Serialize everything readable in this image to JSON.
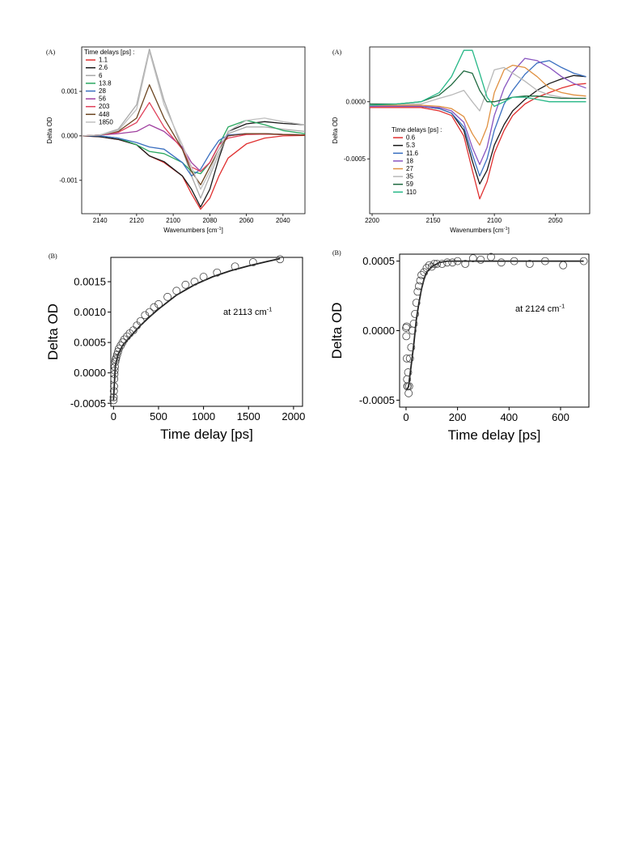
{
  "chart_data": [
    {
      "panel": "(A)",
      "type": "line",
      "xlabel": "Wavenumbers [cm",
      "xlabel_sup": "-1",
      "xlabel_end": "]",
      "ylabel": "Delta OD",
      "xlim": [
        2150,
        2028
      ],
      "ylim": [
        -0.00175,
        0.002
      ],
      "xticks": [
        2140,
        2120,
        2100,
        2080,
        2060,
        2040
      ],
      "yticks": [
        {
          "v": 0.001,
          "label": "0.001"
        },
        {
          "v": 0,
          "label": "0.000"
        },
        {
          "v": -0.001,
          "label": "-0.001"
        }
      ],
      "legend_title": "Time delays [ps] :",
      "legend_position": "top-left",
      "x": [
        2150,
        2140,
        2130,
        2120,
        2113,
        2105,
        2095,
        2090,
        2085,
        2080,
        2075,
        2070,
        2060,
        2050,
        2040,
        2028
      ],
      "series": [
        {
          "name": "1.1",
          "color": "#e03030",
          "values": [
            0,
            -2e-05,
            -8e-05,
            -0.0002,
            -0.00045,
            -0.0006,
            -0.0009,
            -0.0013,
            -0.00165,
            -0.0014,
            -0.0009,
            -0.0005,
            -0.00018,
            -5e-05,
            0,
            1e-05
          ]
        },
        {
          "name": " 2.6",
          "color": "#1a1a1a",
          "values": [
            0,
            -2e-05,
            -8e-05,
            -0.0002,
            -0.00045,
            -0.00058,
            -0.0009,
            -0.0012,
            -0.0016,
            -0.0012,
            -0.0005,
            0.0001,
            0.00027,
            0.00032,
            0.00028,
            0.00025
          ]
        },
        {
          "name": "6",
          "color": "#a8a8a8",
          "values": [
            0,
            2e-05,
            0.00015,
            0.0007,
            0.00195,
            0.0008,
            -0.0003,
            -0.0009,
            -0.0014,
            -0.0009,
            -0.0004,
            5e-05,
            0.0002,
            0.0002,
            0.00015,
            0.0001
          ]
        },
        {
          "name": "13.8",
          "color": "#2aa860",
          "values": [
            0,
            0.0,
            -5e-05,
            -0.0002,
            -0.00035,
            -0.0004,
            -0.0006,
            -0.0008,
            -0.00085,
            -0.0006,
            -0.0002,
            0.0002,
            0.00035,
            0.00025,
            0.00012,
            5e-05
          ]
        },
        {
          "name": "28",
          "color": "#3a6fc0",
          "values": [
            0,
            0.0,
            -5e-05,
            -0.00015,
            -0.00025,
            -0.0003,
            -0.0006,
            -0.0009,
            -0.00075,
            -0.0004,
            -0.0001,
            2e-05,
            5e-05,
            5e-05,
            3e-05,
            2e-05
          ]
        },
        {
          "name": "56",
          "color": "#a040a0",
          "values": [
            0,
            2e-05,
            5e-05,
            0.0001,
            0.00025,
            0.0001,
            -0.00025,
            -0.0006,
            -0.0008,
            -0.0006,
            -0.0002,
            0.0,
            5e-05,
            5e-05,
            3e-05,
            2e-05
          ]
        },
        {
          "name": "203",
          "color": "#e0405a",
          "values": [
            0,
            2e-05,
            8e-05,
            0.0003,
            0.00075,
            0.0002,
            -0.0003,
            -0.0007,
            -0.0008,
            -0.0006,
            -0.0002,
            -5e-05,
            3e-05,
            4e-05,
            3e-05,
            2e-05
          ]
        },
        {
          "name": "448",
          "color": "#6b4420",
          "values": [
            0,
            2e-05,
            0.0001,
            0.0004,
            0.00115,
            0.0004,
            -0.0003,
            -0.0008,
            -0.0011,
            -0.0007,
            -0.0003,
            0.0,
            5e-05,
            5e-05,
            3e-05,
            2e-05
          ]
        },
        {
          "name": "1850",
          "color": "#c0c0c0",
          "values": [
            0,
            2e-05,
            0.00012,
            0.0006,
            0.0019,
            0.0007,
            -0.0002,
            -0.0007,
            -0.0012,
            -0.0008,
            -0.0003,
            0.0001,
            0.00035,
            0.0004,
            0.00032,
            0.00025
          ]
        }
      ]
    },
    {
      "panel": "(A)",
      "type": "line",
      "xlabel": "Wavenumbers [cm",
      "xlabel_sup": "-1",
      "xlabel_end": "]",
      "ylabel": "Delta OD",
      "xlim": [
        2202,
        2022
      ],
      "ylim": [
        -0.00098,
        0.00048
      ],
      "xticks": [
        2200,
        2150,
        2100,
        2050
      ],
      "yticks": [
        {
          "v": 0,
          "label": "0.0000"
        },
        {
          "v": -0.0005,
          "label": "-0.0005"
        }
      ],
      "legend_title": "Time delays [ps] :",
      "legend_position": "bottom-left",
      "x": [
        2202,
        2180,
        2160,
        2145,
        2135,
        2125,
        2118,
        2112,
        2106,
        2100,
        2092,
        2085,
        2075,
        2065,
        2055,
        2045,
        2035,
        2025
      ],
      "series": [
        {
          "name": "0.6",
          "color": "#e03030",
          "values": [
            -5e-05,
            -5e-05,
            -5e-05,
            -8e-05,
            -0.00012,
            -0.0003,
            -0.0006,
            -0.00085,
            -0.0007,
            -0.00045,
            -0.00025,
            -0.00012,
            -2e-05,
            4e-05,
            8e-05,
            0.00012,
            0.00015,
            0.00016
          ]
        },
        {
          "name": "5.3",
          "color": "#1a1a1a",
          "values": [
            -4e-05,
            -4e-05,
            -4e-05,
            -6e-05,
            -0.0001,
            -0.00025,
            -0.00052,
            -0.00072,
            -0.0006,
            -0.00038,
            -0.0002,
            -8e-05,
            2e-05,
            0.0001,
            0.00016,
            0.0002,
            0.00023,
            0.00022
          ]
        },
        {
          "name": "11.6",
          "color": "#3a6fc0",
          "values": [
            -4e-05,
            -4e-05,
            -4e-05,
            -6e-05,
            -0.0001,
            -0.00022,
            -0.00046,
            -0.00065,
            -0.0005,
            -0.00025,
            -2e-05,
            0.0001,
            0.00024,
            0.00034,
            0.00036,
            0.0003,
            0.00025,
            0.00022
          ]
        },
        {
          "name": "18",
          "color": "#8855c0",
          "values": [
            -4e-05,
            -4e-05,
            -4e-05,
            -5e-05,
            -8e-05,
            -0.00018,
            -0.0004,
            -0.00055,
            -0.0004,
            -0.00012,
            0.00012,
            0.00026,
            0.00038,
            0.00036,
            0.0003,
            0.00022,
            0.00016,
            0.00012
          ]
        },
        {
          "name": "27",
          "color": "#e09040",
          "values": [
            -3e-05,
            -3e-05,
            -3e-05,
            -4e-05,
            -6e-05,
            -0.00013,
            -0.00028,
            -0.00038,
            -0.00022,
            8e-05,
            0.00028,
            0.00032,
            0.0003,
            0.00022,
            0.00012,
            8e-05,
            6e-05,
            5e-05
          ]
        },
        {
          "name": "35",
          "color": "#b8b8b8",
          "values": [
            -2e-05,
            -2e-05,
            -2e-05,
            3e-05,
            6e-05,
            0.0001,
            0.0,
            -8e-05,
            0.0001,
            0.00028,
            0.0003,
            0.00025,
            0.00018,
            0.0001,
            6e-05,
            4e-05,
            3e-05,
            3e-05
          ]
        },
        {
          "name": "59",
          "color": "#1f6a40",
          "values": [
            -2e-05,
            -2e-05,
            0.0,
            6e-05,
            0.00015,
            0.00027,
            0.00025,
            0.0001,
            0.0,
            0.0,
            2e-05,
            4e-05,
            5e-05,
            5e-05,
            4e-05,
            3e-05,
            3e-05,
            3e-05
          ]
        },
        {
          "name": "110",
          "color": "#28b888",
          "values": [
            -3e-05,
            -2e-05,
            0.0,
            8e-05,
            0.00022,
            0.00045,
            0.00045,
            0.00025,
            4e-05,
            -4e-05,
            0.0,
            4e-05,
            4e-05,
            2e-05,
            0.0,
            0.0,
            0.0,
            0.0
          ]
        }
      ]
    },
    {
      "panel": "(B)",
      "type": "scatter",
      "xlabel": "Time delay [ps]",
      "ylabel": "Delta OD",
      "xlim": [
        -30,
        2100
      ],
      "ylim": [
        -0.00055,
        0.0019
      ],
      "xticks": [
        0,
        500,
        1000,
        1500,
        2000
      ],
      "yticks": [
        {
          "v": 0.0015,
          "label": "0.0015"
        },
        {
          "v": 0.001,
          "label": "0.0010"
        },
        {
          "v": 0.0005,
          "label": "0.0005"
        },
        {
          "v": 0,
          "label": "0.0000"
        },
        {
          "v": -0.0005,
          "label": "-0.0005"
        }
      ],
      "annotation": "at 2113 cm",
      "annotation_sup": "-1",
      "points_x": [
        0,
        2,
        4,
        6,
        8,
        10,
        12,
        15,
        20,
        25,
        30,
        40,
        50,
        60,
        80,
        100,
        120,
        150,
        180,
        220,
        260,
        300,
        350,
        400,
        450,
        500,
        600,
        700,
        800,
        900,
        1000,
        1150,
        1350,
        1550,
        1850
      ],
      "points_y": [
        -0.00045,
        -0.0004,
        -0.0003,
        -0.00022,
        -0.0001,
        -2e-05,
        4e-05,
        0.0001,
        0.00018,
        0.00022,
        0.00025,
        0.0003,
        0.00035,
        0.0004,
        0.00045,
        0.0005,
        0.00055,
        0.0006,
        0.00065,
        0.0007,
        0.00078,
        0.00085,
        0.00095,
        0.001,
        0.00108,
        0.00113,
        0.00125,
        0.00135,
        0.00145,
        0.0015,
        0.00158,
        0.00165,
        0.00175,
        0.00182,
        0.00187
      ],
      "fit_x": [
        0,
        20,
        50,
        100,
        200,
        300,
        400,
        500,
        700,
        900,
        1100,
        1300,
        1500,
        1700,
        1850
      ],
      "fit_y": [
        -0.00045,
        0.00012,
        0.0003,
        0.00045,
        0.00062,
        0.00078,
        0.00092,
        0.00105,
        0.00128,
        0.00145,
        0.00158,
        0.00168,
        0.00176,
        0.00183,
        0.00188
      ]
    },
    {
      "panel": "(B)",
      "type": "scatter",
      "xlabel": "Time delay [ps]",
      "ylabel": "Delta OD",
      "xlim": [
        -25,
        710
      ],
      "ylim": [
        -0.00055,
        0.00055
      ],
      "xticks": [
        0,
        200,
        400,
        600
      ],
      "yticks": [
        {
          "v": 0.0005,
          "label": "0.0005"
        },
        {
          "v": 0,
          "label": "0.0000"
        },
        {
          "v": -0.0005,
          "label": "-0.0005"
        }
      ],
      "annotation": "at 2124 cm",
      "annotation_sup": "-1",
      "points_x": [
        0,
        1,
        2,
        3,
        4,
        5,
        6,
        8,
        10,
        12,
        15,
        20,
        25,
        30,
        35,
        40,
        45,
        50,
        55,
        60,
        70,
        80,
        90,
        100,
        110,
        120,
        140,
        160,
        180,
        200,
        230,
        260,
        290,
        330,
        370,
        420,
        480,
        540,
        610,
        690
      ],
      "points_y": [
        2e-05,
        -4e-05,
        3e-05,
        -0.0002,
        -0.00035,
        -0.0004,
        -0.0004,
        -0.0003,
        -0.00045,
        -0.0004,
        -0.0002,
        -0.00012,
        0.0,
        5e-05,
        0.00012,
        0.0002,
        0.00028,
        0.00032,
        0.00036,
        0.0004,
        0.00042,
        0.00045,
        0.00047,
        0.00046,
        0.00048,
        0.00048,
        0.00048,
        0.00049,
        0.00049,
        0.0005,
        0.00048,
        0.00052,
        0.00051,
        0.00053,
        0.00049,
        0.0005,
        0.00048,
        0.0005,
        0.00047,
        0.0005
      ],
      "fit_x": [
        0,
        5,
        10,
        20,
        30,
        40,
        50,
        60,
        70,
        80,
        100,
        130,
        160,
        200,
        300,
        400,
        500,
        600,
        690
      ],
      "fit_y": [
        -0.00042,
        -0.00042,
        -0.0004,
        -0.00025,
        -0.0001,
        8e-05,
        0.0002,
        0.0003,
        0.00037,
        0.00042,
        0.00046,
        0.00049,
        0.0005,
        0.0005,
        0.0005,
        0.0005,
        0.0005,
        0.0005,
        0.0005
      ]
    }
  ]
}
